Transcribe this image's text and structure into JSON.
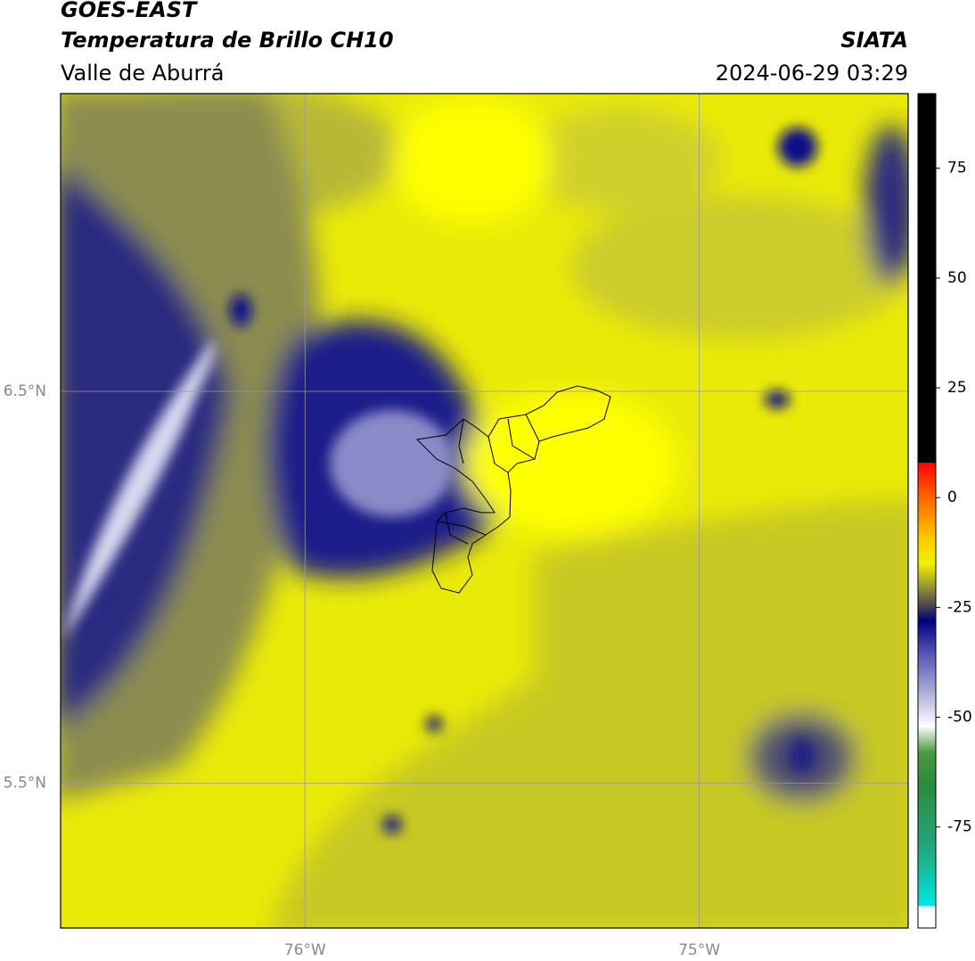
{
  "header": {
    "title": "GOES-EAST",
    "subtitle": "Temperatura de Brillo CH10",
    "region": "Valle de Aburrá",
    "source": "SIATA",
    "datetime": "2024-06-29 03:29"
  },
  "map": {
    "xlim": [
      -76.62,
      -74.47
    ],
    "ylim": [
      5.13,
      7.26
    ],
    "xticks": [
      {
        "value": -76,
        "label": "76°W"
      },
      {
        "value": -75,
        "label": "75°W"
      }
    ],
    "yticks": [
      {
        "value": 6.5,
        "label": "6.5°N"
      },
      {
        "value": 5.5,
        "label": "5.5°N"
      }
    ],
    "grid": true
  },
  "colorbar": {
    "lim": [
      -98,
      92
    ],
    "ticks": [
      75,
      50,
      25,
      0,
      -25,
      -50,
      -75
    ],
    "stops": [
      [
        -98,
        "#ffffff"
      ],
      [
        -93,
        "#ffffff"
      ],
      [
        -93,
        "#00e8e0"
      ],
      [
        -80,
        "#20a880"
      ],
      [
        -65,
        "#2e8b3a"
      ],
      [
        -58,
        "#4a9a40"
      ],
      [
        -52,
        "#ffffff"
      ],
      [
        -45,
        "#b4b4dc"
      ],
      [
        -35,
        "#5050b0"
      ],
      [
        -28,
        "#000080"
      ],
      [
        -25,
        "#404050"
      ],
      [
        -20,
        "#9a9a30"
      ],
      [
        -15,
        "#f0f000"
      ],
      [
        -10,
        "#ffd000"
      ],
      [
        -4,
        "#ff9000"
      ],
      [
        2,
        "#ff5000"
      ],
      [
        8,
        "#ff0000"
      ],
      [
        8,
        "#000000"
      ],
      [
        92,
        "#000000"
      ]
    ]
  }
}
